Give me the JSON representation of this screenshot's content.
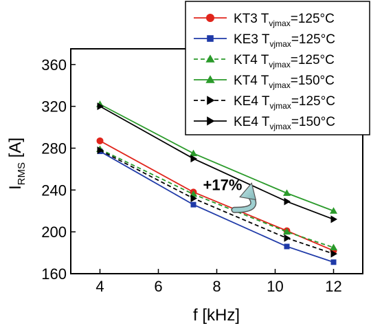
{
  "chart_data": {
    "type": "line",
    "xlabel": "f [kHz]",
    "ylabel": {
      "main": "I",
      "sub": "RMS",
      "unit": " [A]"
    },
    "xlim": [
      3,
      13
    ],
    "ylim": [
      160,
      375
    ],
    "x_ticks": [
      4,
      6,
      8,
      10,
      12
    ],
    "y_ticks": [
      160,
      200,
      240,
      280,
      320,
      360
    ],
    "grid": false,
    "legend_position": "top-right",
    "x": [
      4,
      7.2,
      10.4,
      12
    ],
    "series": [
      {
        "name": {
          "main": "KT3 T",
          "sub": "vjmax",
          "tail": "=125°C"
        },
        "values": [
          287,
          238,
          201,
          182
        ],
        "color": "#e0241b",
        "marker": "circle",
        "dashed": false
      },
      {
        "name": {
          "main": "KE3 T",
          "sub": "vjmax",
          "tail": "=125°C"
        },
        "values": [
          277,
          226,
          186,
          171
        ],
        "color": "#1f3aa8",
        "marker": "square",
        "dashed": false
      },
      {
        "name": {
          "main": "KT4 T",
          "sub": "vjmax",
          "tail": "=125°C"
        },
        "values": [
          279,
          236,
          200,
          185
        ],
        "color": "#2a9a2a",
        "marker": "triangle-up",
        "dashed": true
      },
      {
        "name": {
          "main": "KT4 T",
          "sub": "vjmax",
          "tail": "=150°C"
        },
        "values": [
          322,
          275,
          237,
          220
        ],
        "color": "#2a9a2a",
        "marker": "triangle-up",
        "dashed": false
      },
      {
        "name": {
          "main": "KE4 T",
          "sub": "vjmax",
          "tail": "=125°C"
        },
        "values": [
          278,
          232,
          194,
          179
        ],
        "color": "#000000",
        "marker": "triangle-right",
        "dashed": true
      },
      {
        "name": {
          "main": "KE4 T",
          "sub": "vjmax",
          "tail": "=150°C"
        },
        "values": [
          320,
          270,
          229,
          212
        ],
        "color": "#000000",
        "marker": "triangle-right",
        "dashed": false
      }
    ],
    "annotation": {
      "text": "+17%",
      "at": {
        "x": 8.2,
        "y": 240
      },
      "arrow": {
        "from": {
          "x": 9.1,
          "y": 236
        },
        "to": {
          "x": 8.6,
          "y": 221
        },
        "color": "#9ecfd0"
      }
    }
  }
}
